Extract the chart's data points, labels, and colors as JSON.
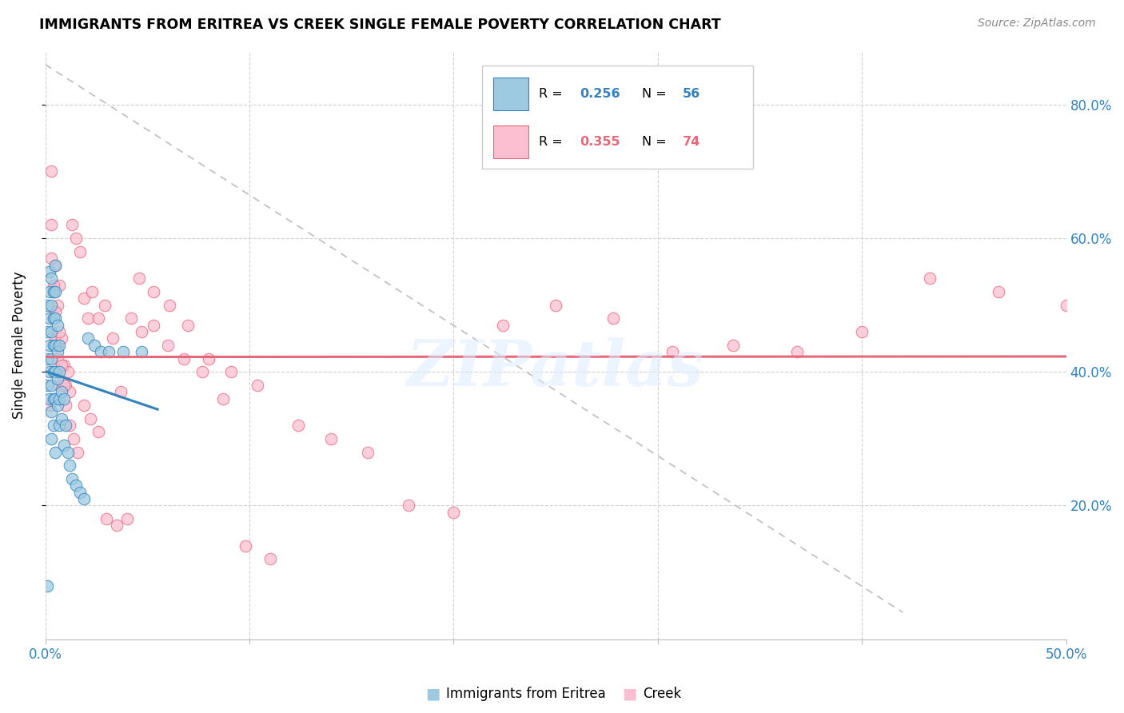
{
  "title": "IMMIGRANTS FROM ERITREA VS CREEK SINGLE FEMALE POVERTY CORRELATION CHART",
  "source": "Source: ZipAtlas.com",
  "ylabel": "Single Female Poverty",
  "ytick_labels": [
    "20.0%",
    "40.0%",
    "60.0%",
    "80.0%"
  ],
  "ytick_values": [
    0.2,
    0.4,
    0.6,
    0.8
  ],
  "xlim": [
    0.0,
    0.5
  ],
  "ylim": [
    0.0,
    0.88
  ],
  "color_blue": "#9ecae1",
  "color_pink": "#fcbfd2",
  "color_blue_line": "#3182bd",
  "color_pink_line": "#e8677a",
  "color_dashed": "#bbbbbb",
  "watermark": "ZIPatlas",
  "blue_x": [
    0.001,
    0.001,
    0.001,
    0.001,
    0.001,
    0.002,
    0.002,
    0.002,
    0.002,
    0.002,
    0.002,
    0.003,
    0.003,
    0.003,
    0.003,
    0.003,
    0.003,
    0.003,
    0.004,
    0.004,
    0.004,
    0.004,
    0.004,
    0.004,
    0.005,
    0.005,
    0.005,
    0.005,
    0.005,
    0.005,
    0.005,
    0.006,
    0.006,
    0.006,
    0.006,
    0.007,
    0.007,
    0.007,
    0.007,
    0.008,
    0.008,
    0.009,
    0.009,
    0.01,
    0.011,
    0.012,
    0.013,
    0.015,
    0.017,
    0.019,
    0.021,
    0.024,
    0.027,
    0.031,
    0.038,
    0.047
  ],
  "blue_y": [
    0.08,
    0.5,
    0.46,
    0.42,
    0.38,
    0.55,
    0.52,
    0.48,
    0.44,
    0.4,
    0.36,
    0.54,
    0.5,
    0.46,
    0.42,
    0.38,
    0.34,
    0.3,
    0.52,
    0.48,
    0.44,
    0.4,
    0.36,
    0.32,
    0.56,
    0.52,
    0.48,
    0.44,
    0.4,
    0.36,
    0.28,
    0.47,
    0.43,
    0.39,
    0.35,
    0.44,
    0.4,
    0.36,
    0.32,
    0.37,
    0.33,
    0.36,
    0.29,
    0.32,
    0.28,
    0.26,
    0.24,
    0.23,
    0.22,
    0.21,
    0.45,
    0.44,
    0.43,
    0.43,
    0.43,
    0.43
  ],
  "pink_x": [
    0.002,
    0.003,
    0.003,
    0.004,
    0.004,
    0.005,
    0.005,
    0.006,
    0.006,
    0.007,
    0.007,
    0.008,
    0.009,
    0.01,
    0.011,
    0.012,
    0.013,
    0.015,
    0.017,
    0.019,
    0.021,
    0.023,
    0.026,
    0.029,
    0.033,
    0.037,
    0.042,
    0.047,
    0.053,
    0.06,
    0.068,
    0.077,
    0.087,
    0.098,
    0.11,
    0.124,
    0.14,
    0.158,
    0.178,
    0.2,
    0.224,
    0.25,
    0.278,
    0.307,
    0.337,
    0.368,
    0.4,
    0.433,
    0.467,
    0.5,
    0.003,
    0.004,
    0.005,
    0.006,
    0.007,
    0.008,
    0.009,
    0.01,
    0.012,
    0.014,
    0.016,
    0.019,
    0.022,
    0.026,
    0.03,
    0.035,
    0.04,
    0.046,
    0.053,
    0.061,
    0.07,
    0.08,
    0.091,
    0.104
  ],
  "pink_y": [
    0.35,
    0.7,
    0.62,
    0.52,
    0.48,
    0.56,
    0.45,
    0.5,
    0.42,
    0.53,
    0.38,
    0.45,
    0.41,
    0.38,
    0.4,
    0.37,
    0.62,
    0.6,
    0.58,
    0.51,
    0.48,
    0.52,
    0.48,
    0.5,
    0.45,
    0.37,
    0.48,
    0.46,
    0.47,
    0.44,
    0.42,
    0.4,
    0.36,
    0.14,
    0.12,
    0.32,
    0.3,
    0.28,
    0.2,
    0.19,
    0.47,
    0.5,
    0.48,
    0.43,
    0.44,
    0.43,
    0.46,
    0.54,
    0.52,
    0.5,
    0.57,
    0.53,
    0.49,
    0.44,
    0.46,
    0.41,
    0.38,
    0.35,
    0.32,
    0.3,
    0.28,
    0.35,
    0.33,
    0.31,
    0.18,
    0.17,
    0.18,
    0.54,
    0.52,
    0.5,
    0.47,
    0.42,
    0.4,
    0.38
  ]
}
